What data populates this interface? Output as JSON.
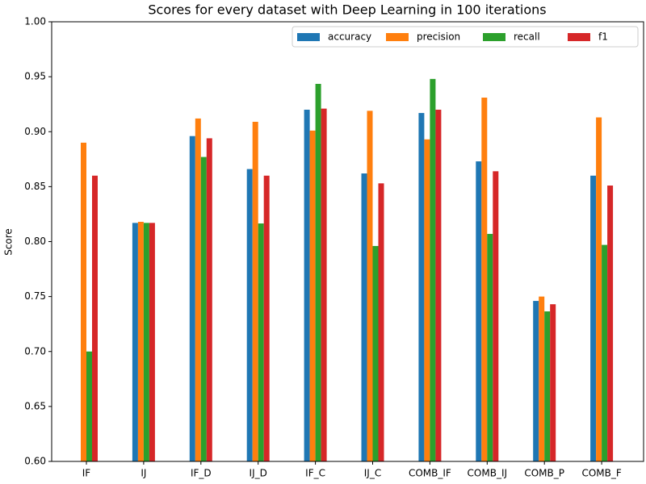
{
  "chart_data": {
    "type": "bar",
    "title": "Scores for every dataset with Deep Learning in 100 iterations",
    "y_label": "Score",
    "categories": [
      "IF",
      "IJ",
      "IF_D",
      "IJ_D",
      "IF_C",
      "IJ_C",
      "COMB_IF",
      "COMB_IJ",
      "COMB_P",
      "COMB_F"
    ],
    "series": [
      {
        "name": "accuracy",
        "color": "#1f77b4",
        "values": [
          null,
          0.817,
          0.896,
          0.866,
          0.92,
          0.862,
          0.917,
          0.873,
          0.746,
          0.86
        ]
      },
      {
        "name": "precision",
        "color": "#ff7f0e",
        "values": [
          0.89,
          0.818,
          0.912,
          0.909,
          0.901,
          0.919,
          0.893,
          0.931,
          0.75,
          0.913
        ]
      },
      {
        "name": "recall",
        "color": "#2ca02c",
        "values": [
          0.7,
          0.817,
          0.877,
          0.8165,
          0.9435,
          0.796,
          0.948,
          0.807,
          0.7365,
          0.797
        ]
      },
      {
        "name": "f1",
        "color": "#d62728",
        "values": [
          0.86,
          0.817,
          0.894,
          0.86,
          0.921,
          0.853,
          0.92,
          0.864,
          0.743,
          0.851
        ]
      }
    ],
    "ylim": [
      0.6,
      1.0
    ],
    "yticks": [
      {
        "value": 0.6,
        "label": "0.60"
      },
      {
        "value": 0.65,
        "label": "0.65"
      },
      {
        "value": 0.7,
        "label": "0.70"
      },
      {
        "value": 0.75,
        "label": "0.75"
      },
      {
        "value": 0.8,
        "label": "0.80"
      },
      {
        "value": 0.85,
        "label": "0.85"
      },
      {
        "value": 0.9,
        "label": "0.90"
      },
      {
        "value": 0.95,
        "label": "0.95"
      },
      {
        "value": 1.0,
        "label": "1.00"
      }
    ],
    "legend": "upper right",
    "grid": false
  }
}
